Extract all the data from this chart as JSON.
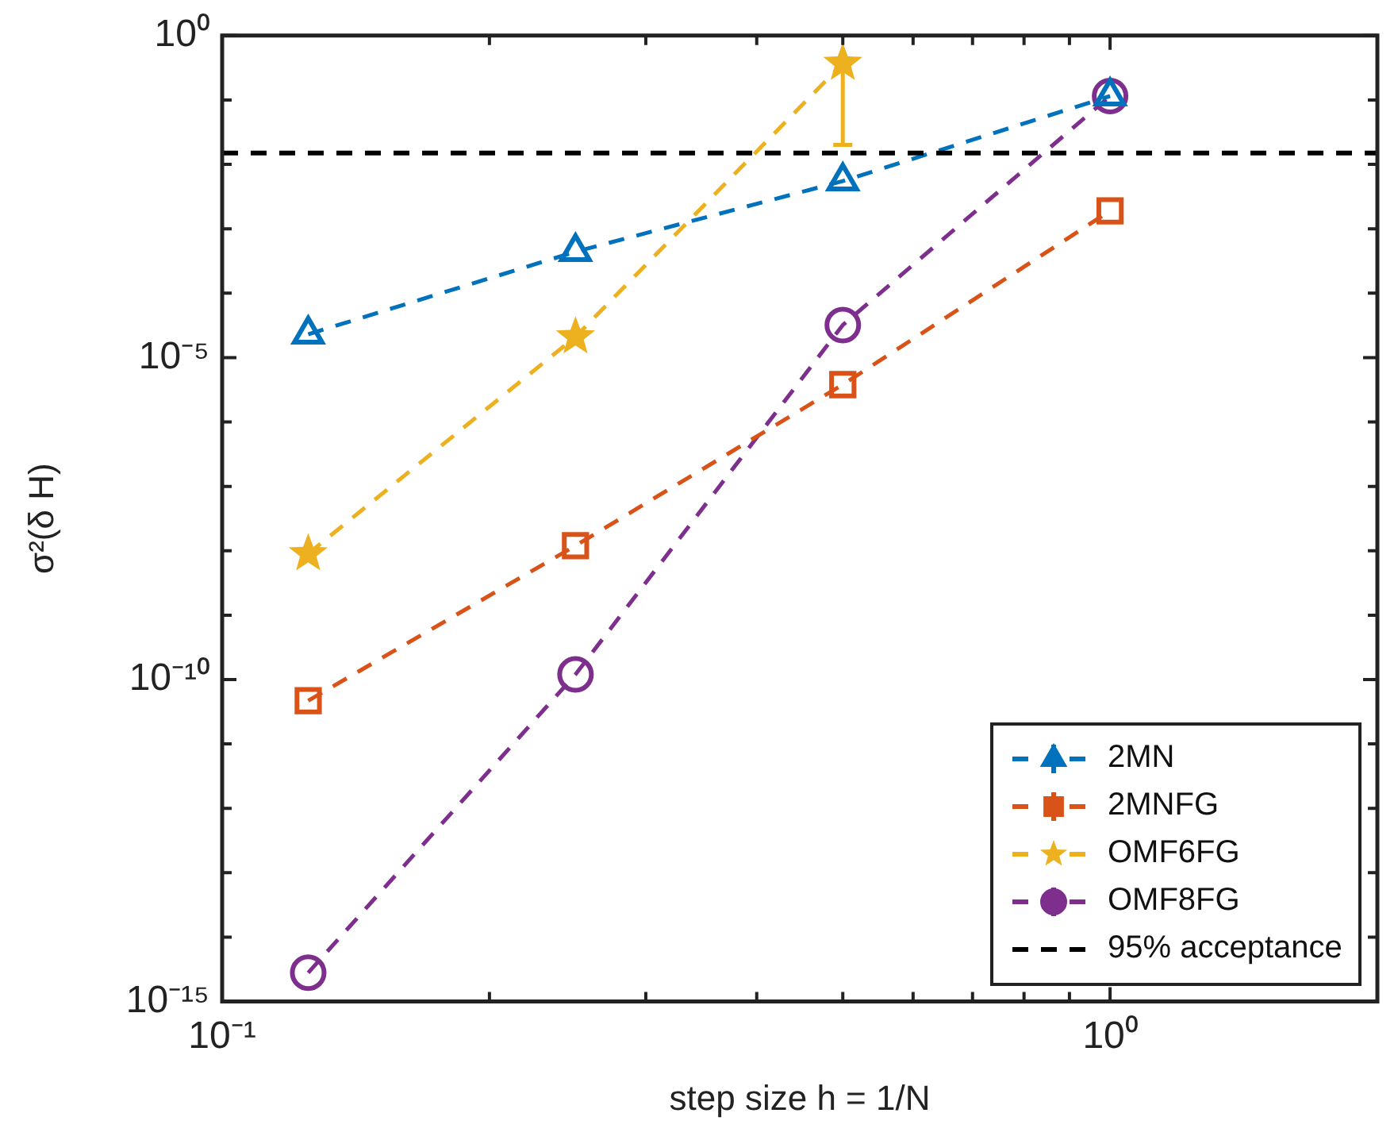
{
  "chart_data": {
    "type": "line",
    "xlabel": "step size h = 1/N",
    "ylabel": "σ²(δ H)",
    "log": "xy",
    "grid": false,
    "legend": "bottom right",
    "line_style": "dashed",
    "x": [
      0.125,
      0.25,
      0.5,
      1
    ],
    "xlim": [
      0.1,
      2
    ],
    "xticks": [
      {
        "value": 0.1,
        "label": "10⁻¹"
      },
      {
        "value": 0.2,
        "label": null
      },
      {
        "value": 0.3,
        "label": null
      },
      {
        "value": 0.4,
        "label": null
      },
      {
        "value": 0.5,
        "label": null
      },
      {
        "value": 0.6,
        "label": null
      },
      {
        "value": 0.7,
        "label": null
      },
      {
        "value": 0.8,
        "label": null
      },
      {
        "value": 0.9,
        "label": null
      },
      {
        "value": 1,
        "label": "10⁰"
      }
    ],
    "ylim": [
      1e-15,
      1
    ],
    "yticks": [
      {
        "value": 1e-15,
        "label": "10⁻¹⁵"
      },
      {
        "value": 1e-14,
        "label": null
      },
      {
        "value": 1e-13,
        "label": null
      },
      {
        "value": 1e-12,
        "label": null
      },
      {
        "value": 1e-11,
        "label": null
      },
      {
        "value": 1e-10,
        "label": "10⁻¹⁰"
      },
      {
        "value": 1e-09,
        "label": null
      },
      {
        "value": 1e-08,
        "label": null
      },
      {
        "value": 1e-07,
        "label": null
      },
      {
        "value": 1e-06,
        "label": null
      },
      {
        "value": 1e-05,
        "label": "10⁻⁵"
      },
      {
        "value": 0.0001,
        "label": null
      },
      {
        "value": 0.001,
        "label": null
      },
      {
        "value": 0.01,
        "label": null
      },
      {
        "value": 0.1,
        "label": null
      },
      {
        "value": 1,
        "label": "10⁰"
      }
    ],
    "series": [
      {
        "name": "2MN",
        "color": "#0072bd",
        "marker": "triangle",
        "values": [
          2.3e-05,
          0.00044,
          0.0055,
          0.115
        ]
      },
      {
        "name": "2MNFG",
        "color": "#d95319",
        "marker": "square",
        "values": [
          4.7e-11,
          1.2e-08,
          3.8e-06,
          0.0019
        ]
      },
      {
        "name": "OMF6FG",
        "color": "#edb120",
        "marker": "star",
        "values": [
          9e-09,
          2.1e-05,
          0.37,
          null
        ],
        "errors": [
          null,
          null,
          [
            0.02,
            0.37
          ],
          null
        ]
      },
      {
        "name": "OMF8FG",
        "color": "#7e2f8e",
        "marker": "circle",
        "values": [
          2.8e-15,
          1.2e-10,
          3.2e-05,
          0.115
        ]
      }
    ],
    "ref_lines": [
      {
        "axis": "y",
        "value": 0.015,
        "label": "95% acceptance",
        "color": "#000000",
        "line_style": "dashed"
      }
    ]
  }
}
